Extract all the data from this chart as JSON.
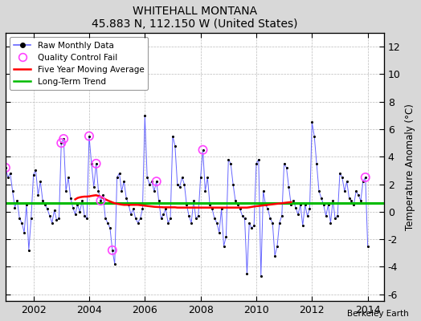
{
  "title": "WHITEHALL MONTANA",
  "subtitle": "45.883 N, 112.150 W (United States)",
  "ylabel": "Temperature Anomaly (°C)",
  "credit": "Berkeley Earth",
  "xlim": [
    2001.0,
    2014.58
  ],
  "ylim": [
    -6.5,
    13.0
  ],
  "yticks": [
    -6,
    -4,
    -2,
    0,
    2,
    4,
    6,
    8,
    10,
    12
  ],
  "xticks": [
    2002,
    2004,
    2006,
    2008,
    2010,
    2012,
    2014
  ],
  "fig_bg_color": "#d8d8d8",
  "plot_bg_color": "#ffffff",
  "raw_color": "#6666ff",
  "raw_dot_color": "#000000",
  "ma_color": "#ff0000",
  "trend_color": "#00bb00",
  "qc_color": "#ff44ff",
  "long_term_trend_value": 0.62,
  "raw_data": [
    [
      2001.0,
      3.2
    ],
    [
      2001.083,
      2.5
    ],
    [
      2001.167,
      2.8
    ],
    [
      2001.25,
      1.5
    ],
    [
      2001.333,
      0.3
    ],
    [
      2001.417,
      0.8
    ],
    [
      2001.5,
      -0.5
    ],
    [
      2001.583,
      -0.8
    ],
    [
      2001.667,
      -1.5
    ],
    [
      2001.75,
      0.5
    ],
    [
      2001.833,
      -2.8
    ],
    [
      2001.917,
      -0.5
    ],
    [
      2002.0,
      2.7
    ],
    [
      2002.083,
      3.0
    ],
    [
      2002.167,
      1.2
    ],
    [
      2002.25,
      2.2
    ],
    [
      2002.333,
      0.8
    ],
    [
      2002.417,
      0.5
    ],
    [
      2002.5,
      0.2
    ],
    [
      2002.583,
      -0.3
    ],
    [
      2002.667,
      -0.8
    ],
    [
      2002.75,
      0.1
    ],
    [
      2002.833,
      -0.6
    ],
    [
      2002.917,
      -0.5
    ],
    [
      2003.0,
      5.0
    ],
    [
      2003.083,
      5.3
    ],
    [
      2003.167,
      1.5
    ],
    [
      2003.25,
      2.5
    ],
    [
      2003.333,
      1.0
    ],
    [
      2003.417,
      0.3
    ],
    [
      2003.5,
      -0.2
    ],
    [
      2003.583,
      0.5
    ],
    [
      2003.667,
      0.0
    ],
    [
      2003.75,
      0.8
    ],
    [
      2003.833,
      -0.3
    ],
    [
      2003.917,
      -0.5
    ],
    [
      2004.0,
      5.5
    ],
    [
      2004.083,
      3.5
    ],
    [
      2004.167,
      1.8
    ],
    [
      2004.25,
      3.5
    ],
    [
      2004.333,
      1.5
    ],
    [
      2004.417,
      0.8
    ],
    [
      2004.5,
      1.2
    ],
    [
      2004.583,
      -0.5
    ],
    [
      2004.667,
      -0.8
    ],
    [
      2004.75,
      -1.2
    ],
    [
      2004.833,
      -2.8
    ],
    [
      2004.917,
      -3.8
    ],
    [
      2005.0,
      2.5
    ],
    [
      2005.083,
      2.8
    ],
    [
      2005.167,
      1.5
    ],
    [
      2005.25,
      2.2
    ],
    [
      2005.333,
      1.0
    ],
    [
      2005.417,
      0.5
    ],
    [
      2005.5,
      -0.2
    ],
    [
      2005.583,
      0.2
    ],
    [
      2005.667,
      -0.5
    ],
    [
      2005.75,
      -0.8
    ],
    [
      2005.833,
      -0.5
    ],
    [
      2005.917,
      0.2
    ],
    [
      2006.0,
      7.0
    ],
    [
      2006.083,
      2.5
    ],
    [
      2006.167,
      2.0
    ],
    [
      2006.25,
      2.2
    ],
    [
      2006.333,
      1.5
    ],
    [
      2006.417,
      2.2
    ],
    [
      2006.5,
      0.8
    ],
    [
      2006.583,
      -0.5
    ],
    [
      2006.667,
      -0.2
    ],
    [
      2006.75,
      0.2
    ],
    [
      2006.833,
      -0.8
    ],
    [
      2006.917,
      -0.5
    ],
    [
      2007.0,
      5.5
    ],
    [
      2007.083,
      4.8
    ],
    [
      2007.167,
      2.0
    ],
    [
      2007.25,
      1.8
    ],
    [
      2007.333,
      2.5
    ],
    [
      2007.417,
      2.0
    ],
    [
      2007.5,
      0.5
    ],
    [
      2007.583,
      -0.3
    ],
    [
      2007.667,
      -0.8
    ],
    [
      2007.75,
      0.8
    ],
    [
      2007.833,
      -0.5
    ],
    [
      2007.917,
      -0.3
    ],
    [
      2008.0,
      2.5
    ],
    [
      2008.083,
      4.5
    ],
    [
      2008.167,
      1.5
    ],
    [
      2008.25,
      2.5
    ],
    [
      2008.333,
      0.5
    ],
    [
      2008.417,
      0.2
    ],
    [
      2008.5,
      -0.5
    ],
    [
      2008.583,
      -0.8
    ],
    [
      2008.667,
      -1.5
    ],
    [
      2008.75,
      0.2
    ],
    [
      2008.833,
      -2.5
    ],
    [
      2008.917,
      -1.8
    ],
    [
      2009.0,
      3.8
    ],
    [
      2009.083,
      3.5
    ],
    [
      2009.167,
      2.0
    ],
    [
      2009.25,
      0.8
    ],
    [
      2009.333,
      0.5
    ],
    [
      2009.417,
      0.2
    ],
    [
      2009.5,
      -0.3
    ],
    [
      2009.583,
      -0.5
    ],
    [
      2009.667,
      -4.5
    ],
    [
      2009.75,
      -0.8
    ],
    [
      2009.833,
      -1.2
    ],
    [
      2009.917,
      -1.0
    ],
    [
      2010.0,
      3.5
    ],
    [
      2010.083,
      3.8
    ],
    [
      2010.167,
      -4.7
    ],
    [
      2010.25,
      1.5
    ],
    [
      2010.333,
      0.5
    ],
    [
      2010.417,
      0.2
    ],
    [
      2010.5,
      -0.5
    ],
    [
      2010.583,
      -0.8
    ],
    [
      2010.667,
      -3.2
    ],
    [
      2010.75,
      -2.5
    ],
    [
      2010.833,
      -0.8
    ],
    [
      2010.917,
      -0.3
    ],
    [
      2011.0,
      3.5
    ],
    [
      2011.083,
      3.2
    ],
    [
      2011.167,
      1.8
    ],
    [
      2011.25,
      0.5
    ],
    [
      2011.333,
      0.8
    ],
    [
      2011.417,
      0.3
    ],
    [
      2011.5,
      -0.2
    ],
    [
      2011.583,
      0.5
    ],
    [
      2011.667,
      -1.0
    ],
    [
      2011.75,
      0.5
    ],
    [
      2011.833,
      -0.3
    ],
    [
      2011.917,
      0.2
    ],
    [
      2012.0,
      6.5
    ],
    [
      2012.083,
      5.5
    ],
    [
      2012.167,
      3.5
    ],
    [
      2012.25,
      1.5
    ],
    [
      2012.333,
      1.0
    ],
    [
      2012.417,
      0.5
    ],
    [
      2012.5,
      -0.3
    ],
    [
      2012.583,
      0.5
    ],
    [
      2012.667,
      -0.8
    ],
    [
      2012.75,
      0.8
    ],
    [
      2012.833,
      -0.5
    ],
    [
      2012.917,
      -0.3
    ],
    [
      2013.0,
      2.8
    ],
    [
      2013.083,
      2.5
    ],
    [
      2013.167,
      1.5
    ],
    [
      2013.25,
      2.2
    ],
    [
      2013.333,
      1.0
    ],
    [
      2013.417,
      0.8
    ],
    [
      2013.5,
      0.5
    ],
    [
      2013.583,
      1.5
    ],
    [
      2013.667,
      1.2
    ],
    [
      2013.75,
      0.8
    ],
    [
      2013.833,
      2.2
    ],
    [
      2013.917,
      2.5
    ],
    [
      2014.0,
      -2.5
    ]
  ],
  "qc_fail_points": [
    [
      2001.0,
      3.2
    ],
    [
      2003.0,
      5.0
    ],
    [
      2003.083,
      5.3
    ],
    [
      2004.0,
      5.5
    ],
    [
      2004.25,
      3.5
    ],
    [
      2004.417,
      0.8
    ],
    [
      2004.833,
      -2.8
    ],
    [
      2006.417,
      2.2
    ],
    [
      2008.083,
      4.5
    ],
    [
      2013.917,
      2.5
    ]
  ],
  "moving_avg": [
    [
      2003.5,
      0.9
    ],
    [
      2003.583,
      1.0
    ],
    [
      2003.667,
      1.05
    ],
    [
      2003.75,
      1.08
    ],
    [
      2003.833,
      1.1
    ],
    [
      2003.917,
      1.1
    ],
    [
      2004.0,
      1.12
    ],
    [
      2004.083,
      1.15
    ],
    [
      2004.167,
      1.18
    ],
    [
      2004.25,
      1.2
    ],
    [
      2004.333,
      1.15
    ],
    [
      2004.417,
      1.1
    ],
    [
      2004.5,
      1.0
    ],
    [
      2004.583,
      0.9
    ],
    [
      2004.667,
      0.82
    ],
    [
      2004.75,
      0.75
    ],
    [
      2004.833,
      0.68
    ],
    [
      2004.917,
      0.62
    ],
    [
      2005.0,
      0.58
    ],
    [
      2005.083,
      0.55
    ],
    [
      2005.167,
      0.52
    ],
    [
      2005.25,
      0.5
    ],
    [
      2005.333,
      0.5
    ],
    [
      2005.417,
      0.5
    ],
    [
      2005.5,
      0.5
    ],
    [
      2005.583,
      0.5
    ],
    [
      2005.667,
      0.5
    ],
    [
      2005.75,
      0.5
    ],
    [
      2005.833,
      0.48
    ],
    [
      2005.917,
      0.46
    ],
    [
      2006.0,
      0.44
    ],
    [
      2006.083,
      0.42
    ],
    [
      2006.167,
      0.4
    ],
    [
      2006.25,
      0.38
    ],
    [
      2006.333,
      0.36
    ],
    [
      2006.417,
      0.35
    ],
    [
      2006.5,
      0.34
    ],
    [
      2006.583,
      0.33
    ],
    [
      2006.667,
      0.32
    ],
    [
      2006.75,
      0.32
    ],
    [
      2006.833,
      0.32
    ],
    [
      2006.917,
      0.32
    ],
    [
      2007.0,
      0.32
    ],
    [
      2007.083,
      0.32
    ],
    [
      2007.167,
      0.3
    ],
    [
      2007.25,
      0.3
    ],
    [
      2007.333,
      0.3
    ],
    [
      2007.417,
      0.3
    ],
    [
      2007.5,
      0.3
    ],
    [
      2007.583,
      0.3
    ],
    [
      2007.667,
      0.3
    ],
    [
      2007.75,
      0.3
    ],
    [
      2007.833,
      0.3
    ],
    [
      2007.917,
      0.3
    ],
    [
      2008.0,
      0.3
    ],
    [
      2008.083,
      0.3
    ],
    [
      2008.167,
      0.3
    ],
    [
      2008.25,
      0.3
    ],
    [
      2008.333,
      0.3
    ],
    [
      2008.417,
      0.3
    ],
    [
      2008.5,
      0.3
    ],
    [
      2008.583,
      0.3
    ],
    [
      2008.667,
      0.3
    ],
    [
      2008.75,
      0.3
    ],
    [
      2008.833,
      0.3
    ],
    [
      2008.917,
      0.3
    ],
    [
      2009.0,
      0.3
    ],
    [
      2009.083,
      0.3
    ],
    [
      2009.167,
      0.3
    ],
    [
      2009.25,
      0.3
    ],
    [
      2009.333,
      0.3
    ],
    [
      2009.417,
      0.3
    ],
    [
      2009.5,
      0.3
    ],
    [
      2009.583,
      0.3
    ],
    [
      2009.667,
      0.3
    ],
    [
      2009.75,
      0.32
    ],
    [
      2009.833,
      0.35
    ],
    [
      2009.917,
      0.38
    ],
    [
      2010.0,
      0.4
    ],
    [
      2010.083,
      0.42
    ],
    [
      2010.167,
      0.44
    ],
    [
      2010.25,
      0.46
    ],
    [
      2010.333,
      0.48
    ],
    [
      2010.417,
      0.5
    ],
    [
      2010.5,
      0.52
    ],
    [
      2010.583,
      0.54
    ],
    [
      2010.667,
      0.56
    ],
    [
      2010.75,
      0.58
    ],
    [
      2010.833,
      0.6
    ],
    [
      2010.917,
      0.62
    ],
    [
      2011.0,
      0.64
    ],
    [
      2011.083,
      0.66
    ],
    [
      2011.167,
      0.68
    ],
    [
      2011.25,
      0.7
    ]
  ]
}
